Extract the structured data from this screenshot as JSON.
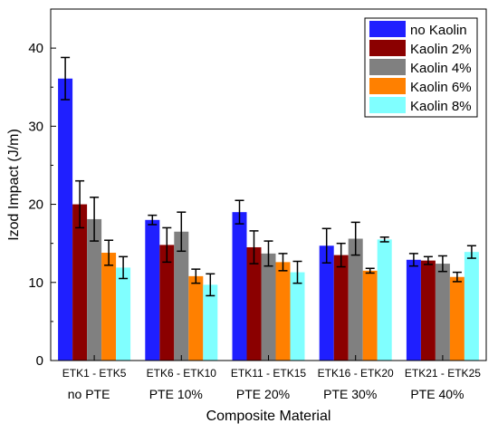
{
  "chart_data": {
    "type": "bar",
    "xlabel": "Composite Material",
    "ylabel": "Izod Impact (J/m)",
    "ylim": [
      0,
      45
    ],
    "yticks": [
      0,
      10,
      20,
      30,
      40
    ],
    "grid": false,
    "legend_position": "top-right",
    "categories": [
      {
        "code": "ETK1 - ETK5",
        "group": "no PTE"
      },
      {
        "code": "ETK6 - ETK10",
        "group": "PTE 10%"
      },
      {
        "code": "ETK11 - ETK15",
        "group": "PTE 20%"
      },
      {
        "code": "ETK16 - ETK20",
        "group": "PTE 30%"
      },
      {
        "code": "ETK21 - ETK25",
        "group": "PTE 40%"
      }
    ],
    "series": [
      {
        "name": "no Kaolin",
        "color": "#1f1fff",
        "values": [
          36.1,
          18.0,
          19.0,
          14.7,
          12.9
        ],
        "errors": [
          2.7,
          0.6,
          1.5,
          2.2,
          0.8
        ]
      },
      {
        "name": "Kaolin 2%",
        "color": "#8b0000",
        "values": [
          20.0,
          14.8,
          14.5,
          13.5,
          12.8
        ],
        "errors": [
          3.0,
          2.2,
          2.1,
          1.5,
          0.5
        ]
      },
      {
        "name": "Kaolin 4%",
        "color": "#808080",
        "values": [
          18.1,
          16.5,
          13.7,
          15.6,
          12.4
        ],
        "errors": [
          2.8,
          2.5,
          1.6,
          2.1,
          1.0
        ]
      },
      {
        "name": "Kaolin 6%",
        "color": "#ff8000",
        "values": [
          13.8,
          10.8,
          12.6,
          11.5,
          10.7
        ],
        "errors": [
          1.6,
          0.9,
          1.1,
          0.3,
          0.6
        ]
      },
      {
        "name": "Kaolin 8%",
        "color": "#80ffff",
        "values": [
          11.9,
          9.7,
          11.3,
          15.5,
          13.9
        ],
        "errors": [
          1.4,
          1.4,
          1.4,
          0.3,
          0.8
        ]
      }
    ]
  }
}
